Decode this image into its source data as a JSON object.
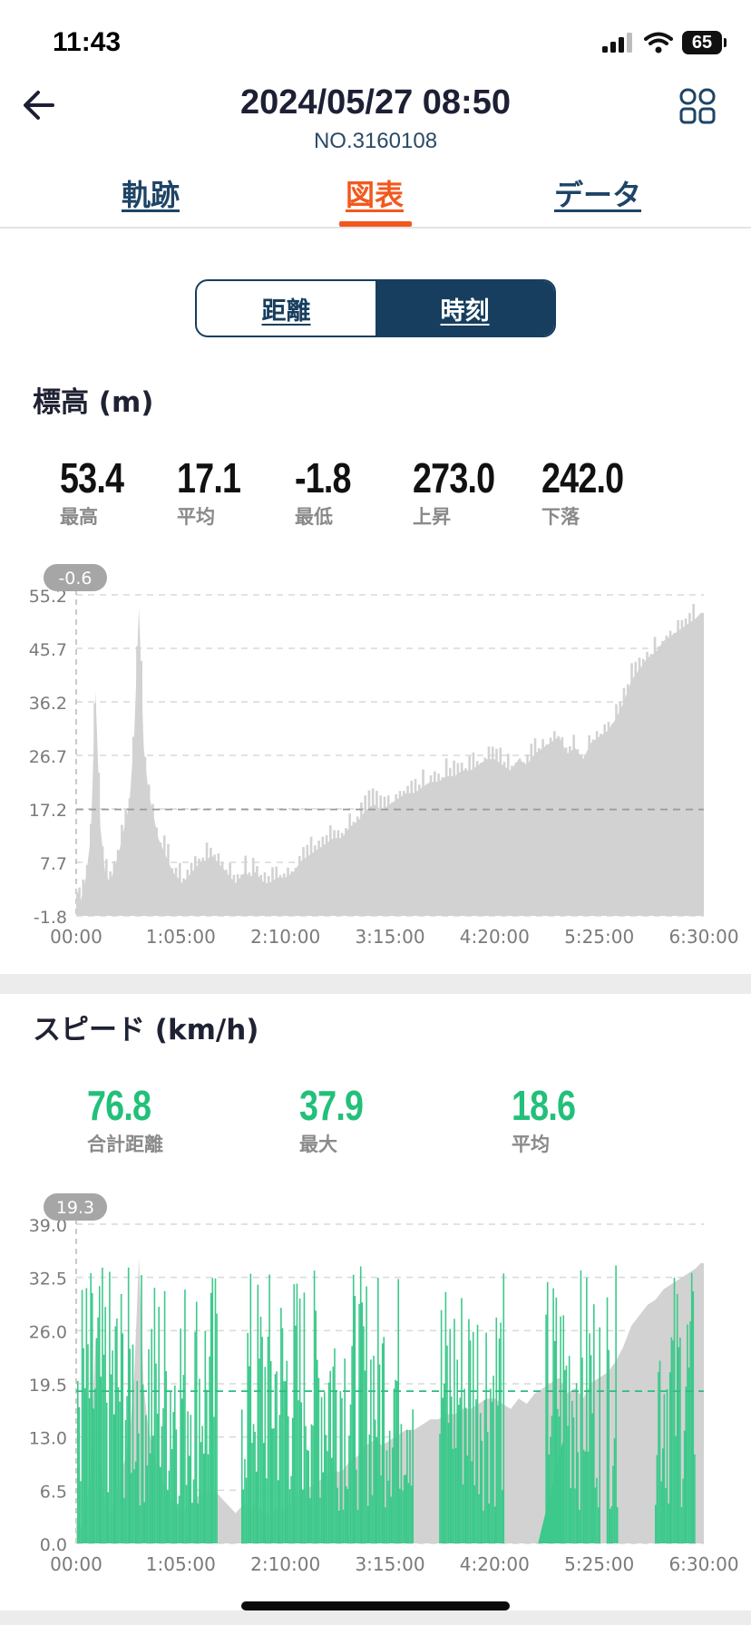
{
  "status_bar": {
    "time": "11:43",
    "battery": "65"
  },
  "header": {
    "title": "2024/05/27 08:50",
    "subtitle": "NO.3160108"
  },
  "tabs": [
    {
      "label": "軌跡",
      "active": false
    },
    {
      "label": "図表",
      "active": true
    },
    {
      "label": "データ",
      "active": false
    }
  ],
  "segmented": {
    "options": [
      "距離",
      "時刻"
    ],
    "selected": "時刻"
  },
  "colors": {
    "accent": "#f2581e",
    "navy": "#173e5e",
    "speed_green": "#22c07a",
    "area_gray": "#d2d2d2"
  },
  "elevation": {
    "title": "標高 (m)",
    "stats": [
      {
        "value": "53.4",
        "label": "最高"
      },
      {
        "value": "17.1",
        "label": "平均"
      },
      {
        "value": "-1.8",
        "label": "最低"
      },
      {
        "value": "273.0",
        "label": "上昇"
      },
      {
        "value": "242.0",
        "label": "下落"
      }
    ],
    "badge": "-0.6"
  },
  "speed": {
    "title": "スピード (km/h)",
    "stats": [
      {
        "value": "76.8",
        "label": "合計距離"
      },
      {
        "value": "37.9",
        "label": "最大"
      },
      {
        "value": "18.6",
        "label": "平均"
      }
    ],
    "badge": "19.3"
  },
  "chart_data": [
    {
      "type": "area",
      "title": "標高 (m)",
      "xlabel": "",
      "ylabel": "",
      "x_ticks": [
        "00:00",
        "1:05:00",
        "2:10:00",
        "3:15:00",
        "4:20:00",
        "5:25:00",
        "6:30:00"
      ],
      "y_ticks": [
        "-1.8",
        "7.7",
        "17.2",
        "26.7",
        "36.2",
        "45.7",
        "55.2"
      ],
      "ylim": [
        -1.8,
        55.2
      ],
      "xlim_min": [
        0,
        390
      ],
      "reference_line": 17.1,
      "grid": true,
      "x_min": [
        0,
        3,
        6,
        9,
        12,
        15,
        18,
        21,
        24,
        27,
        30,
        33,
        36,
        39,
        42,
        45,
        48,
        51,
        54,
        57,
        60,
        63,
        66,
        69,
        72,
        75,
        78,
        81,
        84,
        87,
        90,
        93,
        96,
        99,
        102,
        105,
        108,
        111,
        114,
        117,
        120,
        125,
        130,
        135,
        140,
        145,
        150,
        155,
        160,
        165,
        170,
        175,
        180,
        185,
        190,
        195,
        200,
        205,
        210,
        215,
        220,
        225,
        230,
        235,
        240,
        245,
        250,
        255,
        260,
        265,
        270,
        275,
        280,
        285,
        290,
        295,
        300,
        305,
        310,
        315,
        320,
        325,
        330,
        335,
        340,
        345,
        350,
        355,
        360,
        365,
        370,
        375,
        380,
        385,
        388,
        390
      ],
      "y": [
        3,
        1,
        5,
        12,
        38,
        14,
        6,
        4,
        7,
        10,
        14,
        18,
        30,
        53,
        28,
        20,
        16,
        12,
        10,
        8,
        6,
        5,
        4,
        5,
        6,
        7,
        8,
        8,
        9,
        8,
        7,
        6,
        5,
        4,
        5,
        6,
        5,
        6,
        5,
        4,
        4,
        5,
        5,
        6,
        8,
        9,
        10,
        11,
        12,
        12,
        14,
        15,
        17,
        18,
        17,
        18,
        19,
        20,
        20,
        21,
        22,
        22,
        23,
        23,
        24,
        24,
        25,
        26,
        26,
        25,
        24,
        26,
        25,
        27,
        28,
        29,
        30,
        27,
        28,
        26,
        29,
        30,
        31,
        33,
        36,
        40,
        42,
        44,
        45,
        47,
        48,
        49,
        50,
        51,
        52,
        52
      ]
    },
    {
      "type": "area",
      "title": "スピード (km/h)",
      "xlabel": "",
      "ylabel": "",
      "x_ticks": [
        "00:00",
        "1:05:00",
        "2:10:00",
        "3:15:00",
        "4:20:00",
        "5:25:00",
        "6:30:00"
      ],
      "y_ticks": [
        "0.0",
        "6.5",
        "13.0",
        "19.5",
        "26.0",
        "32.5",
        "39.0"
      ],
      "ylim": [
        0,
        39.0
      ],
      "xlim_min": [
        0,
        390
      ],
      "reference_line": 18.6,
      "grid": true,
      "series": [
        {
          "name": "",
          "note": "elevation background area (gray)"
        },
        {
          "name": "",
          "note": "speed (green)"
        }
      ]
    }
  ]
}
